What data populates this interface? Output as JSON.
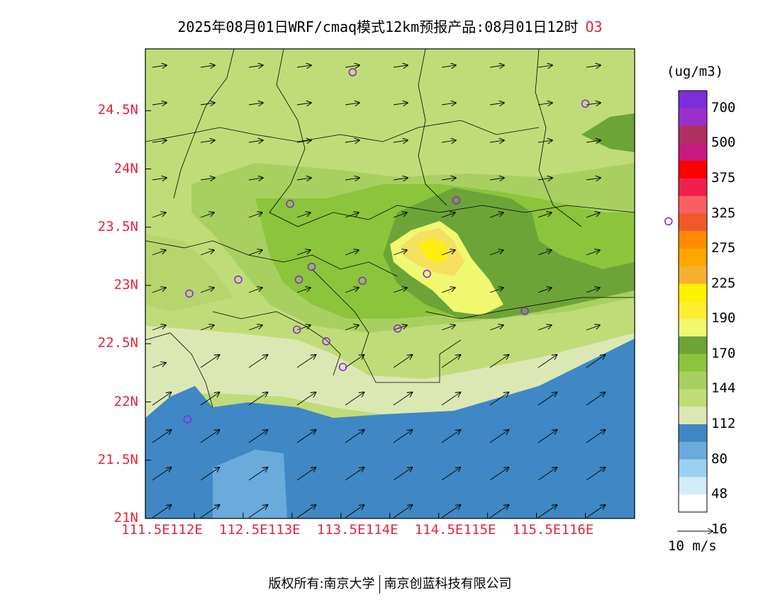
{
  "title": "2025年08月01日WRF/cmaq模式12km预报产品:08月01日12时",
  "species": "O3",
  "unit": "(ug/m3)",
  "wind_scale_label": "10 m/s",
  "footer": {
    "left": "版权所有:南京大学",
    "right": "南京创蓝科技有限公司"
  },
  "lat_labels": [
    "24.5N",
    "24N",
    "23.5N",
    "23N",
    "22.5N",
    "22N",
    "21.5N",
    "21N"
  ],
  "lon_labels": [
    "111.5E",
    "112E",
    "112.5E",
    "113E",
    "113.5E",
    "114E",
    "114.5E",
    "115E",
    "115.5E",
    "116E"
  ],
  "colorbar": {
    "labels": [
      "700",
      "500",
      "375",
      "325",
      "275",
      "225",
      "190",
      "170",
      "144",
      "112",
      "80",
      "48",
      "16"
    ],
    "colors": [
      "#7b2fd8",
      "#9b30c8",
      "#b03060",
      "#c81882",
      "#ff0000",
      "#f0204c",
      "#f86060",
      "#f05a28",
      "#ff8c00",
      "#ffa500",
      "#f5b030",
      "#fff000",
      "#ffee30",
      "#f0f870",
      "#6ca438",
      "#8cc43c",
      "#a8d060",
      "#c0dc78",
      "#dbe8b4",
      "#3f88c5",
      "#6aabdc",
      "#9cd0f0",
      "#d2ecf8",
      "#ffffff"
    ]
  },
  "levels": {
    "ocean_deep": "#3f88c5",
    "ocean_mid": "#6aabdc",
    "band_80": "#dbe8b4",
    "band_96": "#c0dc78",
    "band_112": "#a8d060",
    "band_128": "#8cc43c",
    "band_144": "#6ca438",
    "band_170": "#f0f870",
    "band_190": "#f5e060",
    "band_200": "#ffee10"
  },
  "stations": [
    {
      "lon": 111.95,
      "lat": 22.93
    },
    {
      "lon": 112.45,
      "lat": 23.05
    },
    {
      "lon": 112.98,
      "lat": 23.7
    },
    {
      "lon": 113.07,
      "lat": 23.05
    },
    {
      "lon": 113.2,
      "lat": 23.16
    },
    {
      "lon": 113.72,
      "lat": 23.04
    },
    {
      "lon": 114.38,
      "lat": 23.1
    },
    {
      "lon": 114.68,
      "lat": 23.73
    },
    {
      "lon": 113.05,
      "lat": 22.62
    },
    {
      "lon": 113.35,
      "lat": 22.52
    },
    {
      "lon": 113.52,
      "lat": 22.3
    },
    {
      "lon": 114.08,
      "lat": 22.63
    },
    {
      "lon": 115.38,
      "lat": 22.78
    },
    {
      "lon": 111.93,
      "lat": 21.85
    },
    {
      "lon": 113.62,
      "lat": 24.83
    },
    {
      "lon": 116.0,
      "lat": 24.56
    },
    {
      "lon": 116.85,
      "lat": 23.55
    }
  ]
}
